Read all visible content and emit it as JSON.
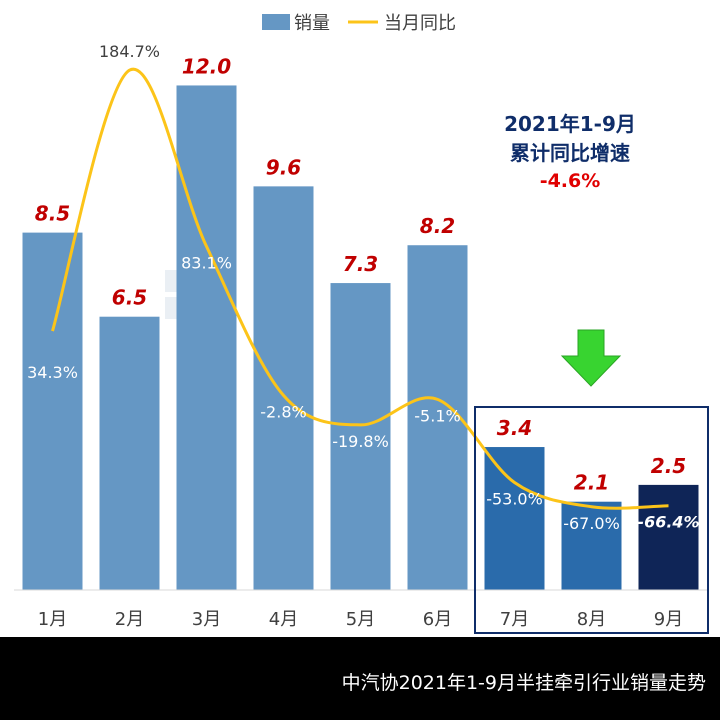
{
  "legend": {
    "series1": "销量",
    "series2": "当月同比"
  },
  "annotation": {
    "line1": "2021年1-9月",
    "line2": "累计同比增速",
    "value": "-4.6%"
  },
  "footer": {
    "caption": "中汽协2021年1-9月半挂牵引行业销量走势"
  },
  "colors": {
    "bar_default": "#6597c4",
    "bar_highlight": "#2a6bab",
    "bar_last": "#0f2557",
    "line": "#fcc419",
    "value_label": "#c00000",
    "annotation_text": "#0f2d69",
    "annotation_value": "#e00000",
    "highlight_box": "#0f2d69",
    "arrow": "#38d430"
  },
  "chart_data": {
    "type": "bar",
    "title": "",
    "xlabel": "",
    "ylabel": "",
    "categories": [
      "1月",
      "2月",
      "3月",
      "4月",
      "5月",
      "6月",
      "7月",
      "8月",
      "9月"
    ],
    "series": [
      {
        "name": "销量",
        "type": "bar",
        "values": [
          8.5,
          6.5,
          12.0,
          9.6,
          7.3,
          8.2,
          3.4,
          2.1,
          2.5
        ],
        "labels": [
          "8.5",
          "6.5",
          "12.0",
          "9.6",
          "7.3",
          "8.2",
          "3.4",
          "2.1",
          "2.5"
        ]
      },
      {
        "name": "当月同比",
        "type": "line",
        "unit": "%",
        "values": [
          34.3,
          184.7,
          83.1,
          -2.8,
          -19.8,
          -5.1,
          -53.0,
          -67.0,
          -66.4
        ],
        "labels": [
          "34.3%",
          "184.7%",
          "83.1%",
          "-2.8%",
          "-19.8%",
          "-5.1%",
          "-53.0%",
          "-67.0%",
          "-66.4%"
        ]
      }
    ],
    "ylim": [
      0,
      13.2
    ],
    "y2lim": [
      -115,
      205
    ],
    "highlight_categories": [
      "7月",
      "8月",
      "9月"
    ],
    "legend_position": "top-center"
  }
}
